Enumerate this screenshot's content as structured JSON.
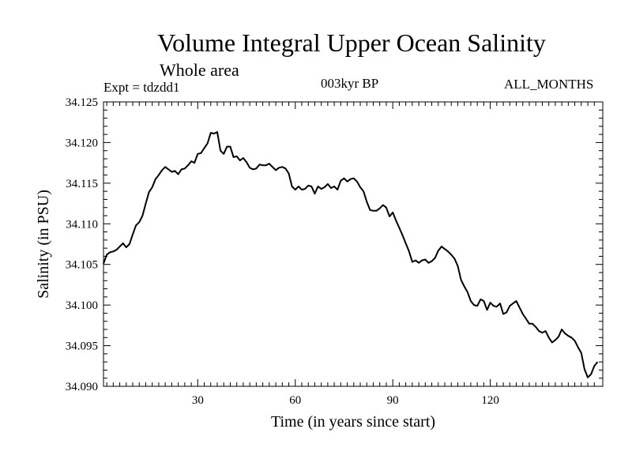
{
  "chart_data": {
    "type": "line",
    "title": "Volume Integral Upper Ocean Salinity",
    "subtitle": "Whole area",
    "experiment": "Expt = tdzdd1",
    "period": "003kyr BP",
    "months": "ALL_MONTHS",
    "xlabel": "Time (in years since start)",
    "ylabel": "Salinity (in PSU)",
    "xlim": [
      1,
      150
    ],
    "ylim": [
      34.09,
      34.125
    ],
    "xticks": [
      30,
      60,
      90,
      120
    ],
    "xtick_labels": [
      "30",
      "60",
      "90",
      "120"
    ],
    "yticks": [
      34.09,
      34.095,
      34.1,
      34.105,
      34.11,
      34.115,
      34.12,
      34.125
    ],
    "ytick_labels": [
      "34.090",
      "34.095",
      "34.100",
      "34.105",
      "34.110",
      "34.115",
      "34.120",
      "34.125"
    ],
    "series": [
      {
        "name": "Salinity",
        "color": "#000000",
        "points": [
          [
            1,
            34.1051
          ],
          [
            2,
            34.1062
          ],
          [
            3,
            34.1065
          ],
          [
            4,
            34.1066
          ],
          [
            5,
            34.1068
          ],
          [
            6,
            34.1072
          ],
          [
            7,
            34.1076
          ],
          [
            8,
            34.1071
          ],
          [
            9,
            34.1075
          ],
          [
            10,
            34.1087
          ],
          [
            11,
            34.1098
          ],
          [
            12,
            34.1102
          ],
          [
            13,
            34.111
          ],
          [
            14,
            34.1125
          ],
          [
            15,
            34.1139
          ],
          [
            16,
            34.1145
          ],
          [
            17,
            34.1155
          ],
          [
            18,
            34.116
          ],
          [
            19,
            34.1166
          ],
          [
            20,
            34.117
          ],
          [
            21,
            34.1167
          ],
          [
            22,
            34.1164
          ],
          [
            23,
            34.1165
          ],
          [
            24,
            34.1161
          ],
          [
            25,
            34.1167
          ],
          [
            26,
            34.1168
          ],
          [
            27,
            34.1172
          ],
          [
            28,
            34.1177
          ],
          [
            29,
            34.1175
          ],
          [
            30,
            34.1186
          ],
          [
            31,
            34.1187
          ],
          [
            32,
            34.1193
          ],
          [
            33,
            34.1199
          ],
          [
            34,
            34.1212
          ],
          [
            35,
            34.1211
          ],
          [
            36,
            34.1213
          ],
          [
            37,
            34.119
          ],
          [
            38,
            34.1186
          ],
          [
            39,
            34.1195
          ],
          [
            40,
            34.1195
          ],
          [
            41,
            34.1182
          ],
          [
            42,
            34.1183
          ],
          [
            43,
            34.1178
          ],
          [
            44,
            34.1181
          ],
          [
            45,
            34.1176
          ],
          [
            46,
            34.1169
          ],
          [
            47,
            34.1167
          ],
          [
            48,
            34.1168
          ],
          [
            49,
            34.1173
          ],
          [
            50,
            34.1172
          ],
          [
            51,
            34.1172
          ],
          [
            52,
            34.1174
          ],
          [
            53,
            34.117
          ],
          [
            54,
            34.1166
          ],
          [
            55,
            34.1169
          ],
          [
            56,
            34.117
          ],
          [
            57,
            34.1168
          ],
          [
            58,
            34.1162
          ],
          [
            59,
            34.1146
          ],
          [
            60,
            34.1142
          ],
          [
            61,
            34.1146
          ],
          [
            62,
            34.1142
          ],
          [
            63,
            34.1143
          ],
          [
            64,
            34.1147
          ],
          [
            65,
            34.1146
          ],
          [
            66,
            34.1137
          ],
          [
            67,
            34.1146
          ],
          [
            68,
            34.1143
          ],
          [
            69,
            34.1145
          ],
          [
            70,
            34.1149
          ],
          [
            71,
            34.1144
          ],
          [
            72,
            34.1146
          ],
          [
            73,
            34.1142
          ],
          [
            74,
            34.1153
          ],
          [
            75,
            34.1156
          ],
          [
            76,
            34.1152
          ],
          [
            77,
            34.1155
          ],
          [
            78,
            34.1156
          ],
          [
            79,
            34.1152
          ],
          [
            80,
            34.1145
          ],
          [
            81,
            34.114
          ],
          [
            82,
            34.1127
          ],
          [
            83,
            34.1117
          ],
          [
            84,
            34.1116
          ],
          [
            85,
            34.1116
          ],
          [
            86,
            34.1119
          ],
          [
            87,
            34.1123
          ],
          [
            88,
            34.112
          ],
          [
            89,
            34.1109
          ],
          [
            90,
            34.1114
          ],
          [
            91,
            34.1104
          ],
          [
            92,
            34.1095
          ],
          [
            93,
            34.1086
          ],
          [
            94,
            34.1076
          ],
          [
            95,
            34.1066
          ],
          [
            96,
            34.1053
          ],
          [
            97,
            34.1055
          ],
          [
            98,
            34.1052
          ],
          [
            99,
            34.1055
          ],
          [
            100,
            34.1056
          ],
          [
            101,
            34.1052
          ],
          [
            102,
            34.1054
          ],
          [
            103,
            34.1058
          ],
          [
            104,
            34.1067
          ],
          [
            105,
            34.1072
          ],
          [
            106,
            34.1069
          ],
          [
            107,
            34.1066
          ],
          [
            108,
            34.1062
          ],
          [
            109,
            34.1057
          ],
          [
            110,
            34.1048
          ],
          [
            111,
            34.1031
          ],
          [
            112,
            34.1023
          ],
          [
            113,
            34.1016
          ],
          [
            114,
            34.1005
          ],
          [
            115,
            34.1
          ],
          [
            116,
            34.0999
          ],
          [
            117,
            34.1007
          ],
          [
            118,
            34.1005
          ],
          [
            119,
            34.0994
          ],
          [
            120,
            34.1003
          ],
          [
            121,
            34.0999
          ],
          [
            122,
            34.0998
          ],
          [
            123,
            34.1002
          ],
          [
            124,
            34.0989
          ],
          [
            125,
            34.0991
          ],
          [
            126,
            34.0999
          ],
          [
            127,
            34.1002
          ],
          [
            128,
            34.1005
          ],
          [
            129,
            34.0997
          ],
          [
            130,
            34.0989
          ],
          [
            131,
            34.0983
          ],
          [
            132,
            34.0977
          ],
          [
            133,
            34.0977
          ],
          [
            134,
            34.0973
          ],
          [
            135,
            34.0968
          ],
          [
            136,
            34.0966
          ],
          [
            137,
            34.0968
          ],
          [
            138,
            34.096
          ],
          [
            139,
            34.0954
          ],
          [
            140,
            34.0957
          ],
          [
            141,
            34.0961
          ],
          [
            142,
            34.097
          ],
          [
            143,
            34.0965
          ],
          [
            144,
            34.0962
          ],
          [
            145,
            34.096
          ],
          [
            146,
            34.0956
          ],
          [
            147,
            34.0948
          ],
          [
            148,
            34.0941
          ],
          [
            149,
            34.0921
          ],
          [
            150,
            34.0911
          ],
          [
            151,
            34.0915
          ],
          [
            152,
            34.0925
          ],
          [
            153,
            34.093
          ]
        ]
      }
    ]
  }
}
